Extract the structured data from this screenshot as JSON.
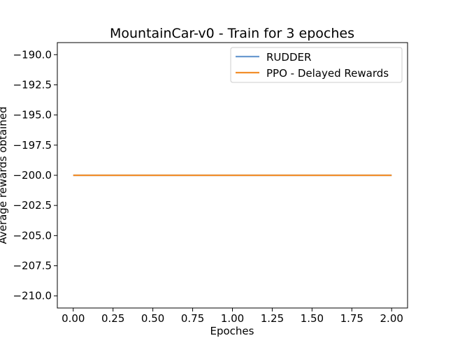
{
  "chart_data": {
    "type": "line",
    "title": "MountainCar-v0 - Train for 3 epoches",
    "xlabel": "Epoches",
    "ylabel": "Average rewards obtained",
    "xlim": [
      -0.1,
      2.1
    ],
    "ylim": [
      -211.0,
      -189.0
    ],
    "xticks": [
      0.0,
      0.25,
      0.5,
      0.75,
      1.0,
      1.25,
      1.5,
      1.75,
      2.0
    ],
    "xtick_labels": [
      "0.00",
      "0.25",
      "0.50",
      "0.75",
      "1.00",
      "1.25",
      "1.50",
      "1.75",
      "2.00"
    ],
    "yticks": [
      -190.0,
      -192.5,
      -195.0,
      -197.5,
      -200.0,
      -202.5,
      -205.0,
      -207.5,
      -210.0
    ],
    "ytick_labels": [
      "−190.0",
      "−192.5",
      "−195.0",
      "−197.5",
      "−200.0",
      "−202.5",
      "−205.0",
      "−207.5",
      "−210.0"
    ],
    "grid": false,
    "legend_position": "top-right",
    "series": [
      {
        "name": "RUDDER",
        "color": "#6a9ad0",
        "x": [
          0,
          1,
          2
        ],
        "y": [
          -200,
          -200,
          -200
        ]
      },
      {
        "name": "PPO - Delayed Rewards",
        "color": "#f28e2b",
        "x": [
          0,
          1,
          2
        ],
        "y": [
          -200,
          -200,
          -200
        ]
      }
    ]
  }
}
